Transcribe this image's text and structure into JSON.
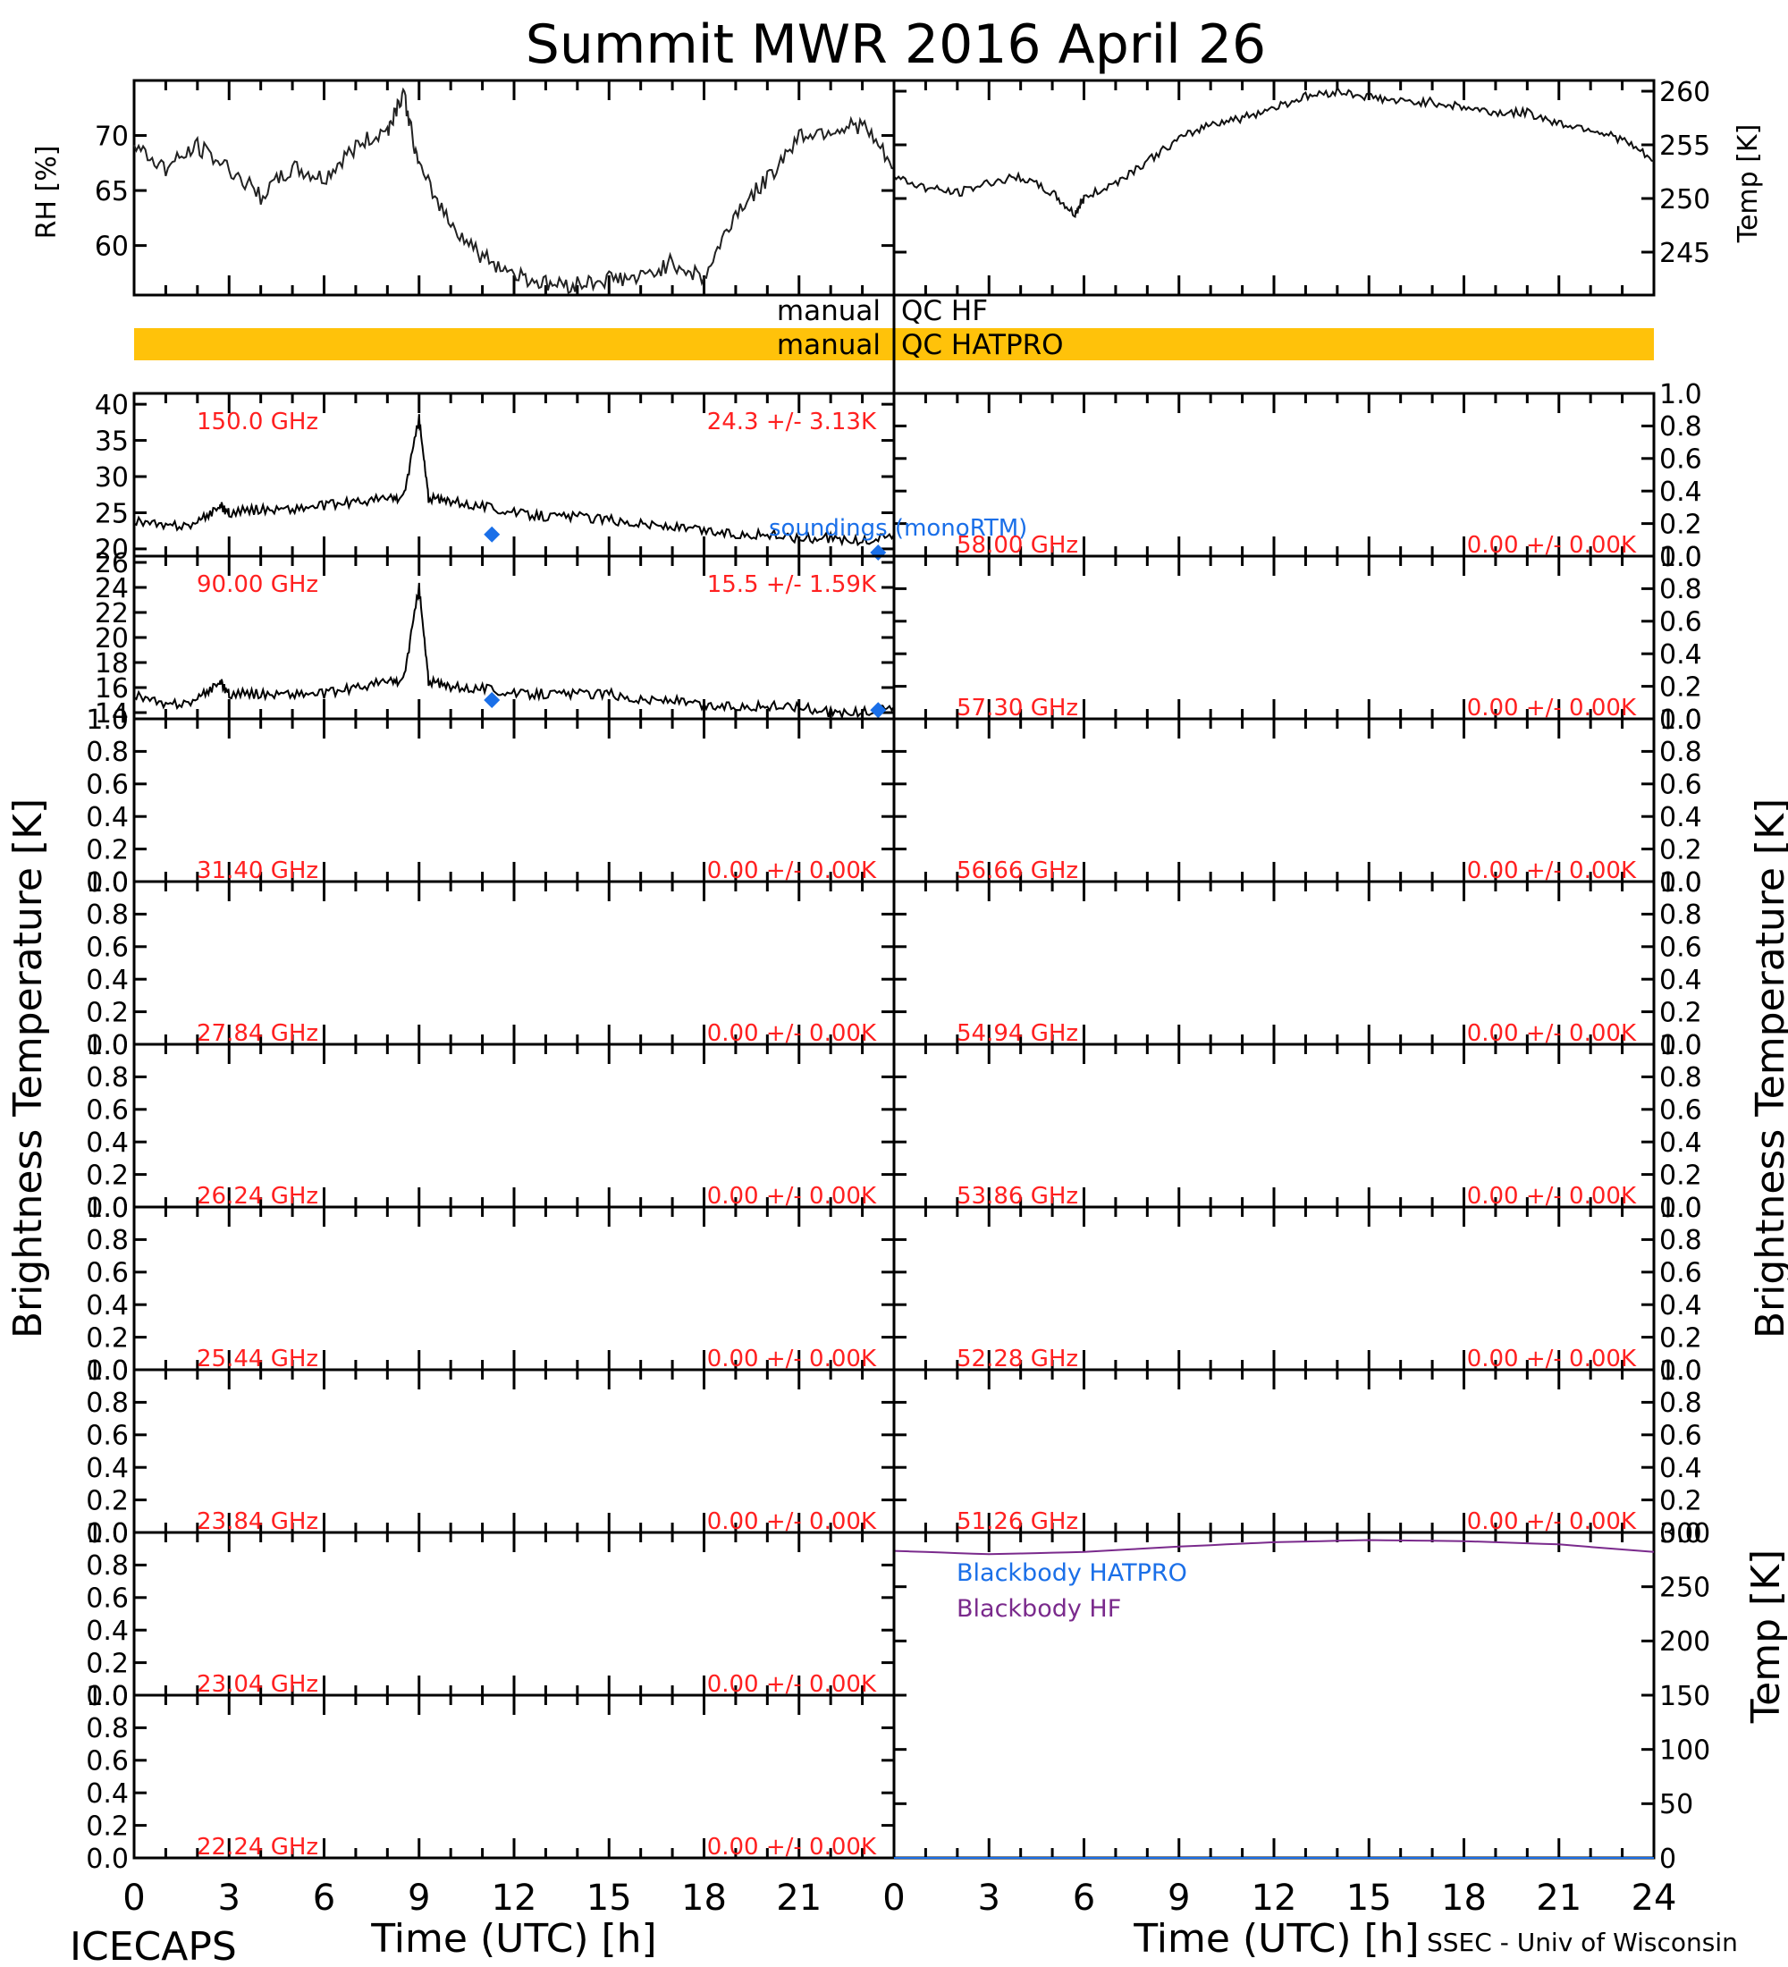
{
  "title": "Summit MWR 2016 April 26",
  "footer": {
    "left": "ICECAPS",
    "right": "SSEC - Univ of Wisconsin"
  },
  "colors": {
    "red": "#ff2020",
    "blue": "#1a6fe8",
    "purple": "#7a2a8c",
    "qc_bar": "#ffc20a",
    "ink": "#000000"
  },
  "qc": {
    "hf_label_left": "manual",
    "hf_label_right": "QC HF",
    "hatpro_label_left": "manual",
    "hatpro_label_right": "QC HATPRO"
  },
  "axes": {
    "rh_label": "RH [%]",
    "temp_label": "Temp [K]",
    "tb_label": "Brightness Temperature [K]",
    "bb_temp_label": "Temp [K]",
    "time_label": "Time (UTC) [h]",
    "time_ticks": [
      "0",
      "3",
      "6",
      "9",
      "12",
      "15",
      "18",
      "21"
    ],
    "time_ticks_right": [
      "0",
      "3",
      "6",
      "9",
      "12",
      "15",
      "18",
      "21",
      "24"
    ],
    "unit_ticks": [
      "0.0",
      "0.2",
      "0.4",
      "0.6",
      "0.8",
      "1.0"
    ]
  },
  "legend": {
    "soundings": "soundings (monoRTM)",
    "bb_hatpro": "Blackbody HATPRO",
    "bb_hf": "Blackbody HF"
  },
  "chart_data": [
    {
      "panel": "rh",
      "type": "line",
      "ylabel": "RH [%]",
      "xlim": [
        0,
        24
      ],
      "ylim": [
        55.5,
        75
      ],
      "yticks": [
        "60",
        "65",
        "70"
      ],
      "x": [
        0,
        1,
        2,
        3,
        4,
        5,
        6,
        7,
        8,
        8.5,
        9,
        10,
        11,
        12,
        13,
        14,
        15,
        16,
        17,
        18,
        19,
        20,
        21,
        22,
        23,
        24
      ],
      "y": [
        69,
        67,
        69,
        67,
        64.5,
        67,
        66,
        69,
        70.5,
        74,
        67,
        62,
        59,
        57.5,
        56.5,
        56.5,
        57,
        57,
        58.5,
        57,
        63,
        66,
        70,
        70.5,
        71,
        67
      ]
    },
    {
      "panel": "temp",
      "type": "line",
      "ylabel": "Temp [K]",
      "xlim": [
        0,
        24
      ],
      "ylim": [
        241,
        261
      ],
      "yticks": [
        "245",
        "250",
        "255",
        "260"
      ],
      "x": [
        0,
        1,
        2,
        3,
        4,
        5,
        5.7,
        6,
        7,
        8,
        9,
        10,
        11,
        12,
        13,
        14,
        15,
        16,
        17,
        18,
        19,
        20,
        21,
        22,
        23,
        24
      ],
      "y": [
        252,
        251,
        250.5,
        251.5,
        252,
        250.5,
        248.5,
        250,
        251.5,
        253.5,
        255.5,
        257,
        257.5,
        258.5,
        259.5,
        260,
        259.5,
        259,
        259,
        258.5,
        258,
        258,
        257,
        256.5,
        255.5,
        253.5
      ]
    },
    {
      "panel": "tb_150",
      "type": "line",
      "series_label": "150.0 GHz",
      "stat": "24.3 +/-  3.13K",
      "xlim": [
        0,
        24
      ],
      "ylim": [
        19,
        41.5
      ],
      "yticks": [
        "20",
        "25",
        "30",
        "35",
        "40"
      ],
      "x": [
        0,
        1,
        2,
        2.7,
        3,
        4,
        5,
        6,
        7,
        8,
        8.5,
        9,
        9.3,
        10,
        11,
        12,
        13,
        14,
        15,
        16,
        17,
        18,
        19,
        20,
        21,
        22,
        23,
        24
      ],
      "y": [
        24,
        23,
        23.5,
        26,
        25,
        25.5,
        25.5,
        26,
        26.5,
        27,
        27,
        38,
        27,
        26.5,
        26,
        25,
        24.5,
        24.5,
        24,
        23.5,
        23,
        22.5,
        22,
        22,
        21.5,
        21.5,
        21,
        22
      ],
      "soundings": [
        {
          "x": 11.3,
          "y": 22
        },
        {
          "x": 23.5,
          "y": 19.5
        }
      ]
    },
    {
      "panel": "tb_90",
      "type": "line",
      "series_label": "90.00 GHz",
      "stat": "15.5 +/-  1.59K",
      "xlim": [
        0,
        24
      ],
      "ylim": [
        13.5,
        26.5
      ],
      "yticks": [
        "14",
        "16",
        "18",
        "20",
        "22",
        "24",
        "26"
      ],
      "x": [
        0,
        1,
        2,
        2.7,
        3,
        4,
        5,
        6,
        7,
        8,
        8.5,
        9,
        9.3,
        10,
        11,
        12,
        13,
        14,
        15,
        16,
        17,
        18,
        19,
        20,
        21,
        22,
        23,
        24
      ],
      "y": [
        15.5,
        14.5,
        15,
        16.5,
        15.5,
        15.5,
        15.5,
        15.5,
        16,
        16.5,
        16.5,
        24,
        16.5,
        16,
        16,
        15.5,
        15.5,
        15.5,
        15.5,
        15,
        15,
        14.5,
        14.5,
        14.5,
        14.5,
        14,
        14,
        14.5
      ],
      "soundings": [
        {
          "x": 11.3,
          "y": 15
        },
        {
          "x": 23.5,
          "y": 14.2
        }
      ]
    },
    {
      "panel": "tb_31.40",
      "type": "line",
      "series_label": "31.40 GHz",
      "stat": "0.00 +/-  0.00K",
      "xlim": [
        0,
        24
      ],
      "ylim": [
        0,
        1
      ],
      "values": []
    },
    {
      "panel": "tb_27.84",
      "type": "line",
      "series_label": "27.84 GHz",
      "stat": "0.00 +/-  0.00K",
      "xlim": [
        0,
        24
      ],
      "ylim": [
        0,
        1
      ],
      "values": []
    },
    {
      "panel": "tb_26.24",
      "type": "line",
      "series_label": "26.24 GHz",
      "stat": "0.00 +/-  0.00K",
      "xlim": [
        0,
        24
      ],
      "ylim": [
        0,
        1
      ],
      "values": []
    },
    {
      "panel": "tb_25.44",
      "type": "line",
      "series_label": "25.44 GHz",
      "stat": "0.00 +/-  0.00K",
      "xlim": [
        0,
        24
      ],
      "ylim": [
        0,
        1
      ],
      "values": []
    },
    {
      "panel": "tb_23.84",
      "type": "line",
      "series_label": "23.84 GHz",
      "stat": "0.00 +/-  0.00K",
      "xlim": [
        0,
        24
      ],
      "ylim": [
        0,
        1
      ],
      "values": []
    },
    {
      "panel": "tb_23.04",
      "type": "line",
      "series_label": "23.04 GHz",
      "stat": "0.00 +/-  0.00K",
      "xlim": [
        0,
        24
      ],
      "ylim": [
        0,
        1
      ],
      "values": []
    },
    {
      "panel": "tb_22.24",
      "type": "line",
      "series_label": "22.24 GHz",
      "stat": "0.00 +/-  0.00K",
      "xlim": [
        0,
        24
      ],
      "ylim": [
        0,
        1
      ],
      "values": []
    },
    {
      "panel": "tb_58.00",
      "type": "line",
      "series_label": "58.00 GHz",
      "stat": "0.00 +/-  0.00K",
      "xlim": [
        0,
        24
      ],
      "ylim": [
        0,
        1
      ],
      "values": []
    },
    {
      "panel": "tb_57.30",
      "type": "line",
      "series_label": "57.30 GHz",
      "stat": "0.00 +/-  0.00K",
      "xlim": [
        0,
        24
      ],
      "ylim": [
        0,
        1
      ],
      "values": []
    },
    {
      "panel": "tb_56.66",
      "type": "line",
      "series_label": "56.66 GHz",
      "stat": "0.00 +/-  0.00K",
      "xlim": [
        0,
        24
      ],
      "ylim": [
        0,
        1
      ],
      "values": []
    },
    {
      "panel": "tb_54.94",
      "type": "line",
      "series_label": "54.94 GHz",
      "stat": "0.00 +/-  0.00K",
      "xlim": [
        0,
        24
      ],
      "ylim": [
        0,
        1
      ],
      "values": []
    },
    {
      "panel": "tb_53.86",
      "type": "line",
      "series_label": "53.86 GHz",
      "stat": "0.00 +/-  0.00K",
      "xlim": [
        0,
        24
      ],
      "ylim": [
        0,
        1
      ],
      "values": []
    },
    {
      "panel": "tb_52.28",
      "type": "line",
      "series_label": "52.28 GHz",
      "stat": "0.00 +/-  0.00K",
      "xlim": [
        0,
        24
      ],
      "ylim": [
        0,
        1
      ],
      "values": []
    },
    {
      "panel": "tb_51.26",
      "type": "line",
      "series_label": "51.26 GHz",
      "stat": "0.00 +/-  0.00K",
      "xlim": [
        0,
        24
      ],
      "ylim": [
        0,
        1
      ],
      "values": []
    },
    {
      "panel": "blackbody",
      "type": "line",
      "ylabel": "Temp [K]",
      "xlim": [
        0,
        24
      ],
      "ylim": [
        0,
        300
      ],
      "yticks": [
        "0",
        "50",
        "100",
        "150",
        "200",
        "250",
        "300"
      ],
      "series": [
        {
          "name": "Blackbody HF",
          "x": [
            0,
            3,
            6,
            9,
            12,
            15,
            18,
            21,
            24
          ],
          "values": [
            283,
            280,
            282,
            287,
            291,
            293,
            292,
            289,
            282
          ]
        },
        {
          "name": "Blackbody HATPRO",
          "x": [
            0,
            24
          ],
          "values": [
            0,
            0
          ]
        }
      ]
    }
  ]
}
